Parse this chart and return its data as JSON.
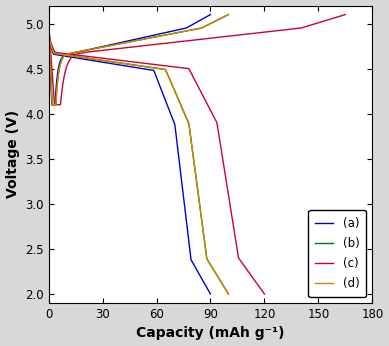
{
  "xlabel": "Capacity (mAh g⁻¹)",
  "ylabel": "Voltage (V)",
  "xlim": [
    0,
    180
  ],
  "ylim": [
    1.9,
    5.2
  ],
  "xticks": [
    0,
    30,
    60,
    90,
    120,
    150,
    180
  ],
  "yticks": [
    2.0,
    2.5,
    3.0,
    3.5,
    4.0,
    4.5,
    5.0
  ],
  "legend_labels": [
    "(a)",
    "(b)",
    "(c)",
    "(d)"
  ],
  "colors": {
    "a": "#0000CC",
    "b": "#007700",
    "c": "#CC0033",
    "d": "#CC8800"
  },
  "background_color": "#d8d8d8",
  "axes_bg": "#ffffff",
  "linewidth": 1.0,
  "curves": {
    "a": {
      "charge_end": 90,
      "discharge_end": 90,
      "plateau_v": 4.66
    },
    "b": {
      "charge_end": 100,
      "discharge_end": 100,
      "plateau_v": 4.67
    },
    "c": {
      "charge_end": 165,
      "discharge_end": 120,
      "plateau_v": 4.68
    },
    "d": {
      "charge_end": 100,
      "discharge_end": 100,
      "plateau_v": 4.67
    }
  }
}
